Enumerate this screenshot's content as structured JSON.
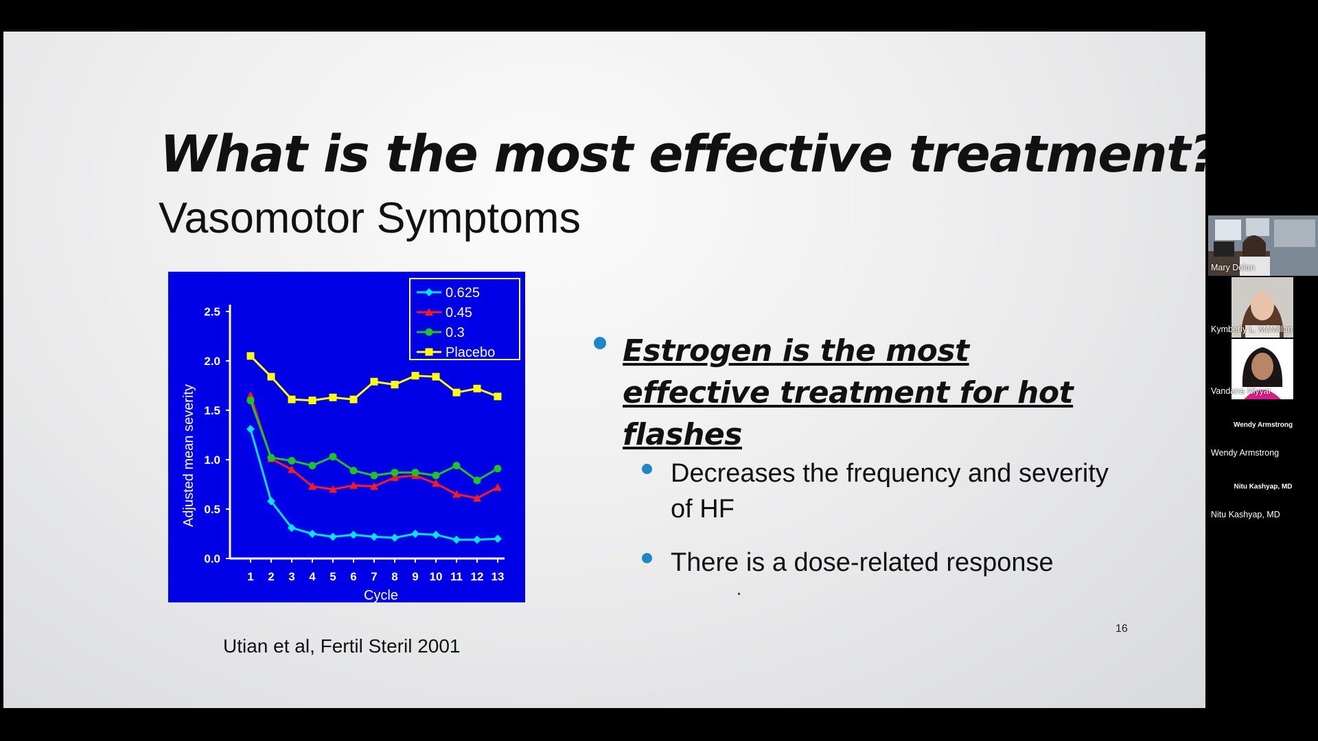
{
  "slide": {
    "title": "What is the most effective treatment?",
    "subtitle": "Vasomotor Symptoms",
    "citation": "Utian et al, Fertil Steril 2001",
    "page_number": "16",
    "bullets": {
      "main": "Estrogen is the most effective treatment for hot flashes",
      "sub": [
        "Decreases the frequency and severity of HF",
        "There is a dose-related response"
      ]
    },
    "colors": {
      "chart_bg": "#0000e6",
      "bullet": "#1f86c9"
    }
  },
  "participants": [
    {
      "name": "Mary Dolan"
    },
    {
      "name": "Kymberly L. McMillan"
    },
    {
      "name": "Vandana Niyyar"
    },
    {
      "name": "Wendy Armstrong",
      "label": "Wendy Armstrong"
    },
    {
      "name": "Nitu Kashyap, MD",
      "label": "Nitu Kashyap, MD"
    }
  ],
  "chart_data": {
    "type": "line",
    "title": "",
    "xlabel": "Cycle",
    "ylabel": "Adjusted mean severity",
    "x": [
      1,
      2,
      3,
      4,
      5,
      6,
      7,
      8,
      9,
      10,
      11,
      12,
      13
    ],
    "ylim": [
      0,
      2.5
    ],
    "yticks": [
      "0.0",
      "0.5",
      "1.0",
      "1.5",
      "2.0",
      "2.5"
    ],
    "legend_position": "top-right",
    "series": [
      {
        "name": "0.625",
        "color": "#00e5ff",
        "marker": "diamond",
        "values": [
          1.31,
          0.58,
          0.31,
          0.25,
          0.22,
          0.24,
          0.22,
          0.21,
          0.25,
          0.24,
          0.19,
          0.19,
          0.2
        ]
      },
      {
        "name": "0.45",
        "color": "#ff1a1a",
        "marker": "triangle",
        "values": [
          1.65,
          1.01,
          0.9,
          0.73,
          0.7,
          0.74,
          0.73,
          0.82,
          0.84,
          0.76,
          0.65,
          0.61,
          0.72
        ]
      },
      {
        "name": "0.3",
        "color": "#1fc41f",
        "marker": "circle",
        "values": [
          1.6,
          1.02,
          0.99,
          0.94,
          1.03,
          0.89,
          0.84,
          0.87,
          0.87,
          0.84,
          0.94,
          0.79,
          0.91
        ]
      },
      {
        "name": "Placebo",
        "color": "#ffff00",
        "marker": "square",
        "values": [
          2.05,
          1.84,
          1.61,
          1.6,
          1.63,
          1.61,
          1.79,
          1.76,
          1.85,
          1.84,
          1.68,
          1.72,
          1.64
        ]
      }
    ]
  }
}
